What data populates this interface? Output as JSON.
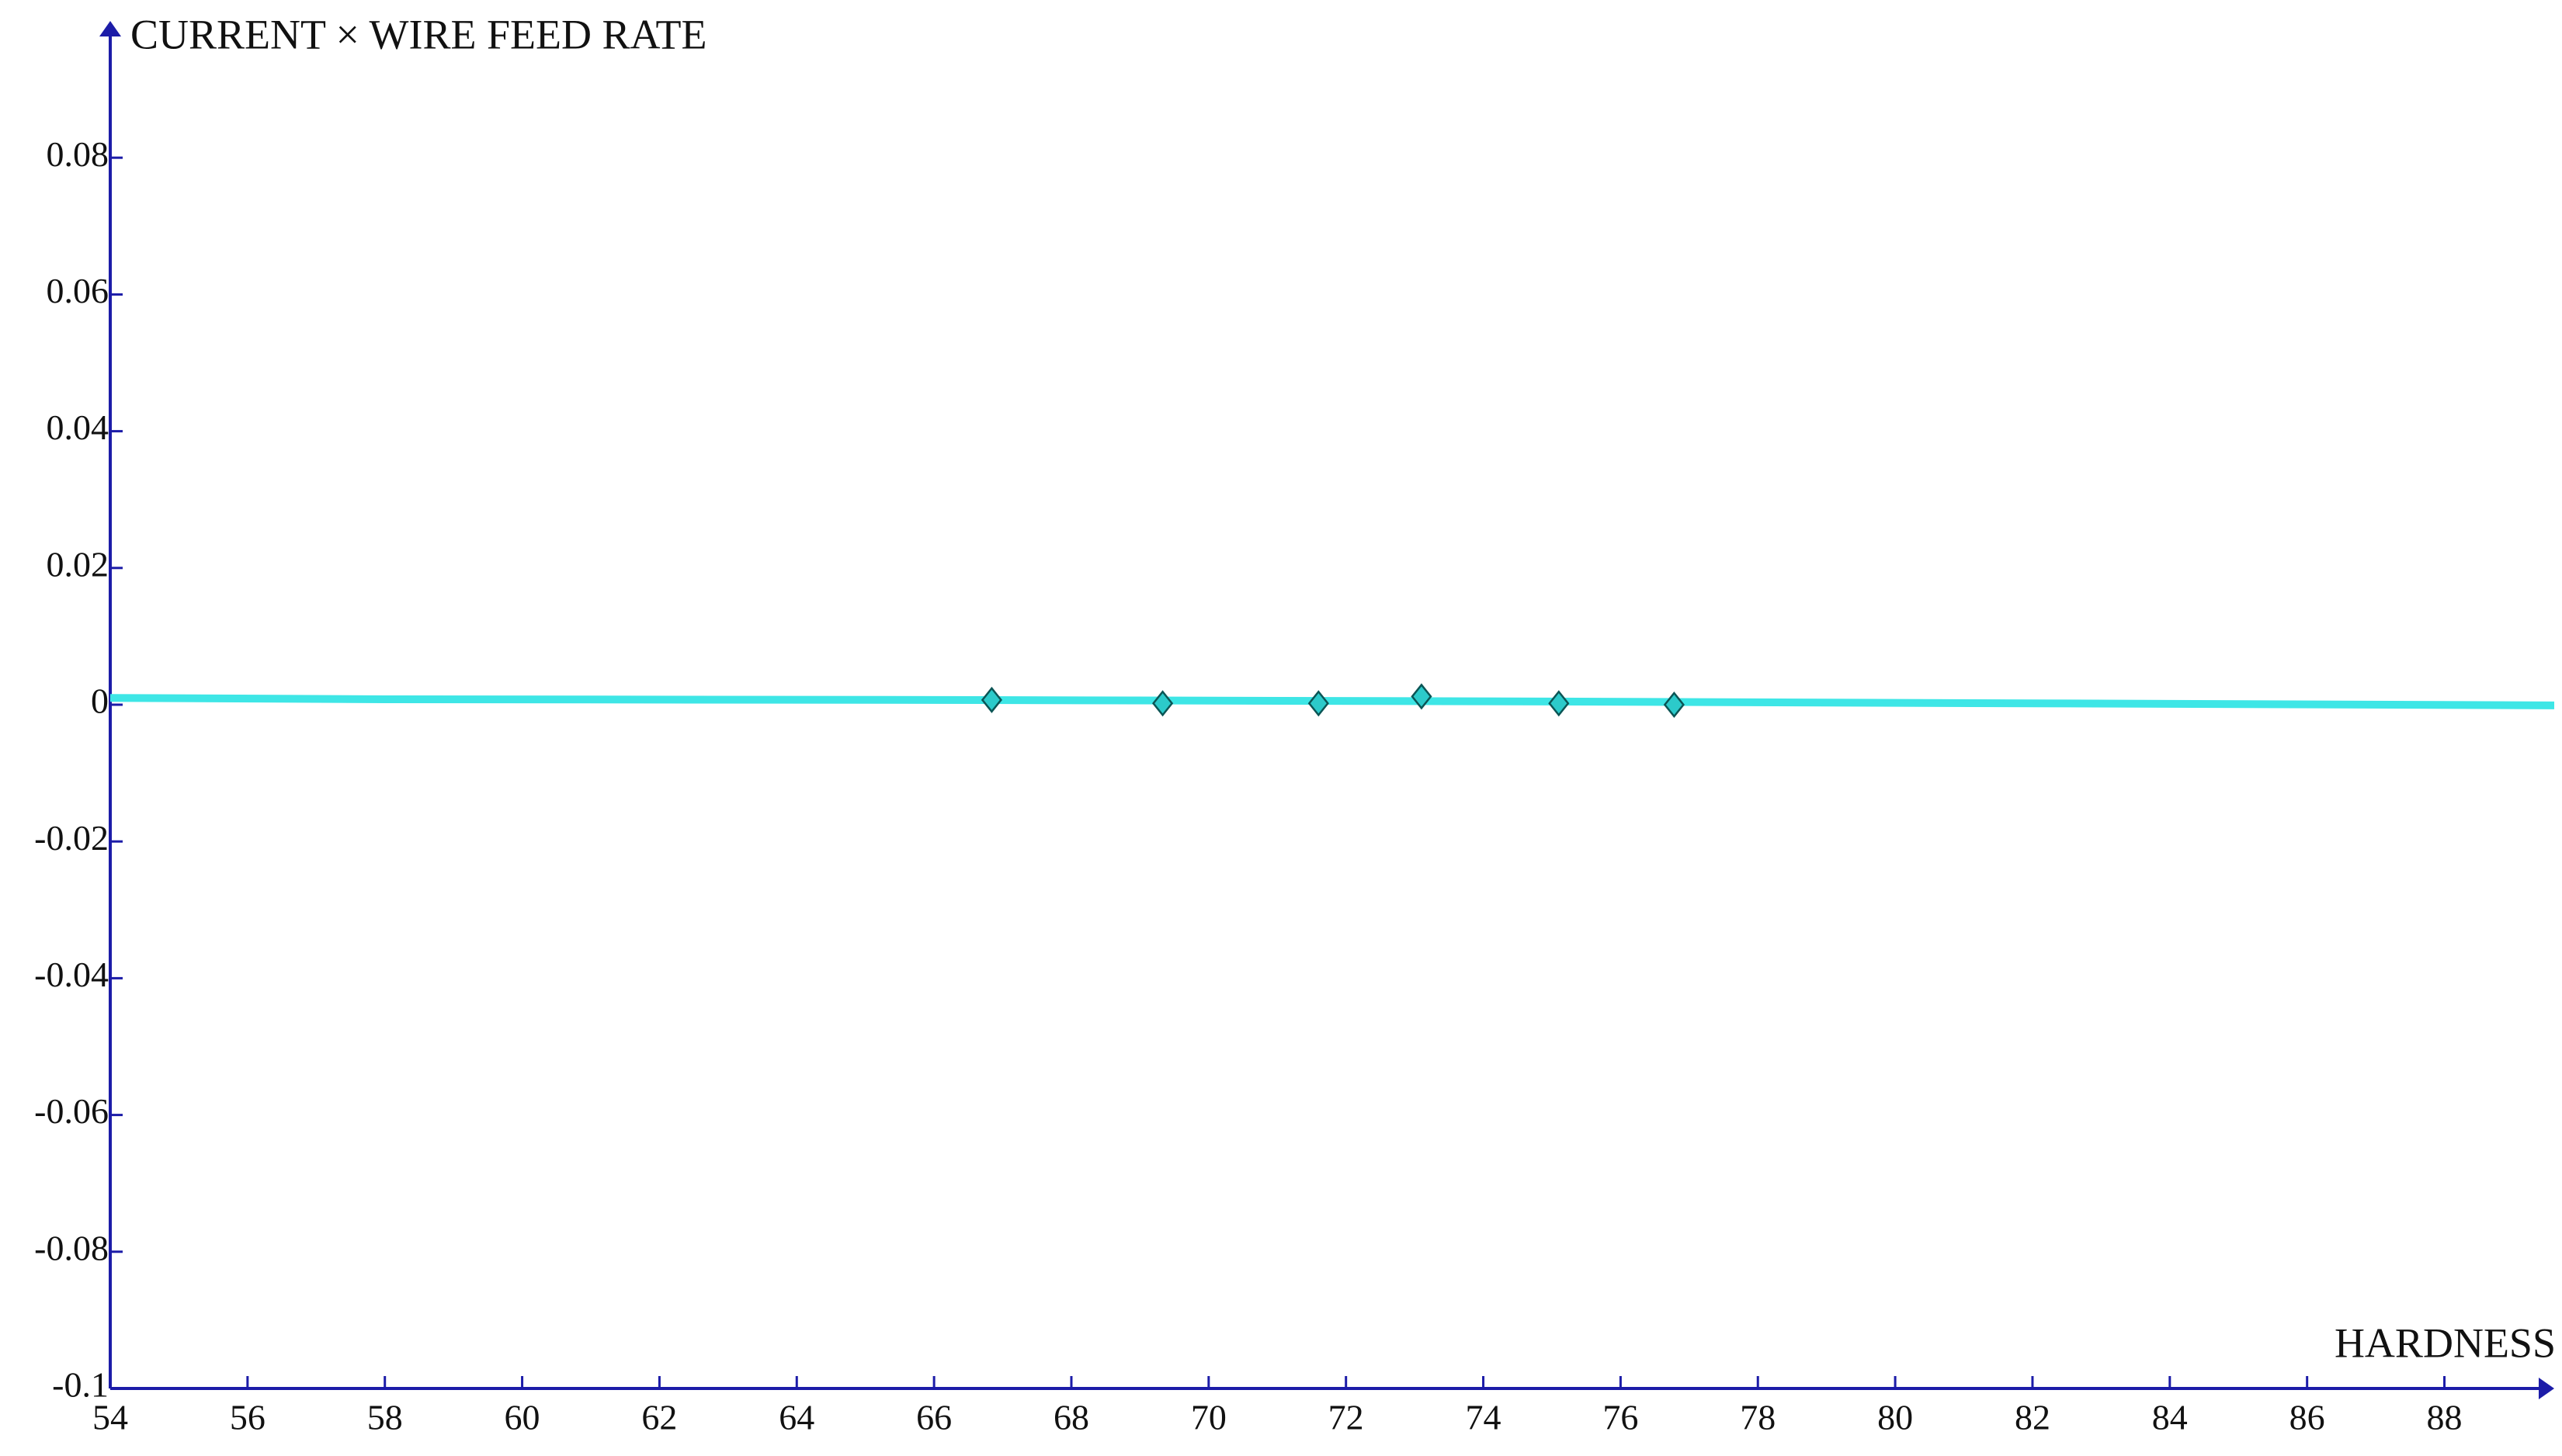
{
  "chart_data": {
    "type": "scatter",
    "x_label": "HARDNESS",
    "y_label": "CURRENT × WIRE FEED RATE",
    "xlim": [
      54,
      89.6
    ],
    "ylim": [
      -0.1,
      0.1
    ],
    "xticks": [
      54,
      56,
      58,
      60,
      62,
      64,
      66,
      68,
      70,
      72,
      74,
      76,
      78,
      80,
      82,
      84,
      86,
      88
    ],
    "yticks": [
      -0.1,
      -0.08,
      -0.06,
      -0.04,
      -0.02,
      0,
      0.02,
      0.04,
      0.06,
      0.08
    ],
    "grid": false,
    "axis_color": "#1c1ca8",
    "series": [
      {
        "type": "line",
        "color": "#3ee6e6",
        "x": [
          54,
          58,
          66,
          74,
          82,
          89.6
        ],
        "values": [
          0.001,
          0.0008,
          0.0007,
          0.0005,
          0.0002,
          -0.0001
        ]
      },
      {
        "type": "scatter",
        "marker": "diamond",
        "color": "#2ccaca",
        "x": [
          66.84,
          69.33,
          71.6,
          73.1,
          75.1,
          76.78
        ],
        "values": [
          0.0007,
          0.0002,
          0.0002,
          0.0012,
          0.0002,
          0
        ]
      }
    ]
  }
}
